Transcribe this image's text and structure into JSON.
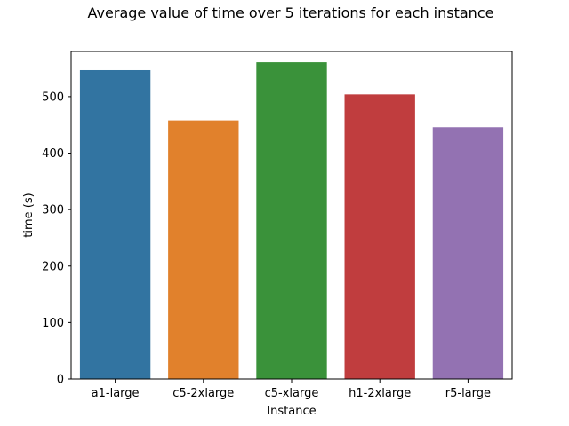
{
  "chart_data": {
    "type": "bar",
    "title": "Average value of time over 5 iterations for each instance",
    "xlabel": "Instance",
    "ylabel": "time (s)",
    "categories": [
      "a1-large",
      "c5-2xlarge",
      "c5-xlarge",
      "h1-2xlarge",
      "r5-large"
    ],
    "values": [
      547,
      458,
      561,
      504,
      446
    ],
    "colors": [
      "#3274a1",
      "#e1812c",
      "#3a923a",
      "#c03d3e",
      "#9372b2"
    ],
    "ylim": [
      0,
      580
    ],
    "yticks": [
      0,
      100,
      200,
      300,
      400,
      500
    ],
    "grid": false,
    "legend": "none"
  }
}
